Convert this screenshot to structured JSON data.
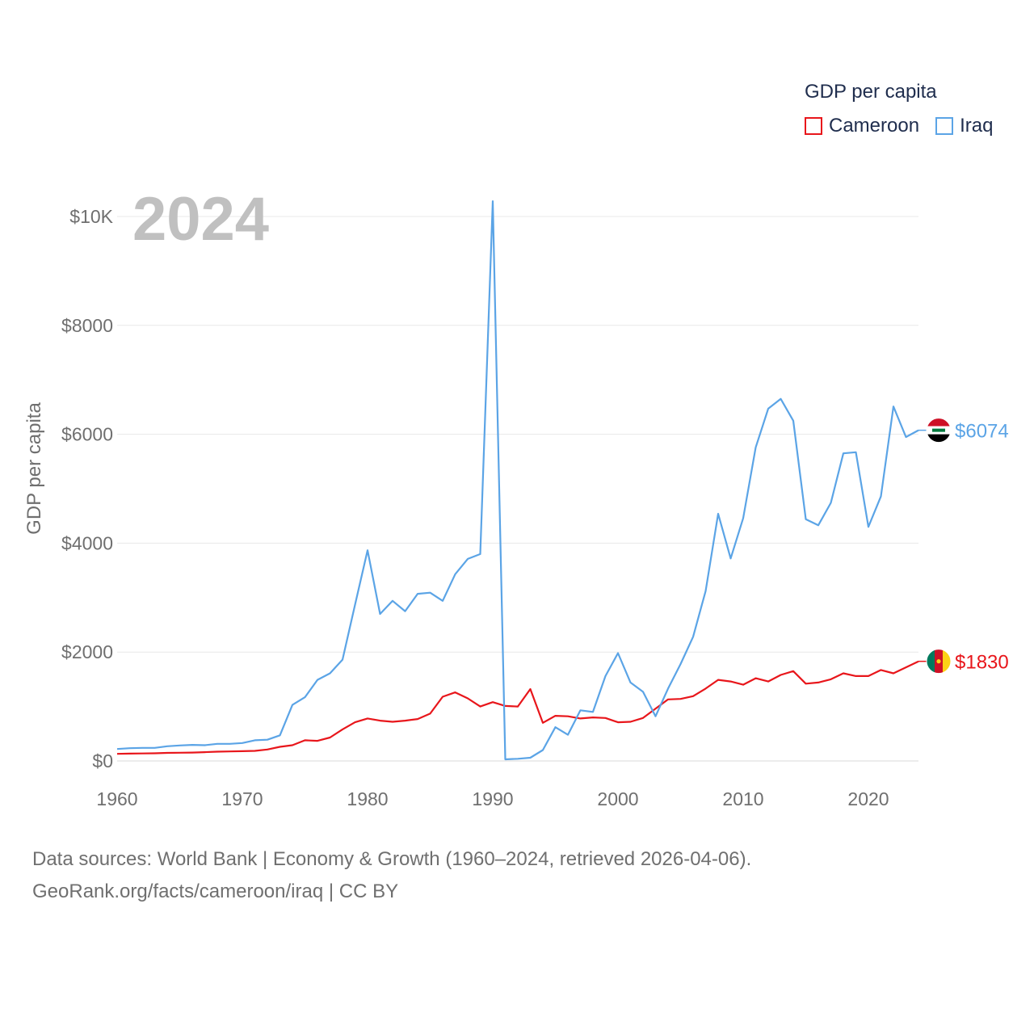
{
  "legend": {
    "title": "GDP per capita",
    "items": [
      {
        "label": "Cameroon",
        "color": "#e8161b"
      },
      {
        "label": "Iraq",
        "color": "#5ba4e6"
      }
    ]
  },
  "year_label": "2024",
  "footer": {
    "line1": "Data sources: World Bank | Economy & Growth (1960–2024, retrieved 2026-04-06).",
    "line2": "GeoRank.org/facts/cameroon/iraq | CC BY"
  },
  "chart_data": {
    "type": "line",
    "title": "GDP per capita",
    "xlabel": "",
    "ylabel": "GDP per capita",
    "xlim": [
      1960,
      2024
    ],
    "ylim": [
      0,
      10000
    ],
    "x_ticks": [
      1960,
      1970,
      1980,
      1990,
      2000,
      2010,
      2020
    ],
    "y_ticks": [
      {
        "value": 0,
        "label": "$0"
      },
      {
        "value": 2000,
        "label": "$2000"
      },
      {
        "value": 4000,
        "label": "$4000"
      },
      {
        "value": 6000,
        "label": "$6000"
      },
      {
        "value": 8000,
        "label": "$8000"
      },
      {
        "value": 10000,
        "label": "$10K"
      }
    ],
    "grid": true,
    "x": [
      1960,
      1961,
      1962,
      1963,
      1964,
      1965,
      1966,
      1967,
      1968,
      1969,
      1970,
      1971,
      1972,
      1973,
      1974,
      1975,
      1976,
      1977,
      1978,
      1979,
      1980,
      1981,
      1982,
      1983,
      1984,
      1985,
      1986,
      1987,
      1988,
      1989,
      1990,
      1991,
      1992,
      1993,
      1994,
      1995,
      1996,
      1997,
      1998,
      1999,
      2000,
      2001,
      2002,
      2003,
      2004,
      2005,
      2006,
      2007,
      2008,
      2009,
      2010,
      2011,
      2012,
      2013,
      2014,
      2015,
      2016,
      2017,
      2018,
      2019,
      2020,
      2021,
      2022,
      2023,
      2024
    ],
    "series": [
      {
        "name": "Cameroon",
        "color": "#e8161b",
        "end_label": "$1830",
        "values": [
          130,
          135,
          138,
          141,
          148,
          152,
          155,
          162,
          170,
          175,
          180,
          185,
          210,
          260,
          290,
          380,
          370,
          430,
          580,
          710,
          780,
          740,
          720,
          740,
          770,
          870,
          1180,
          1260,
          1150,
          1000,
          1080,
          1010,
          1000,
          1320,
          700,
          830,
          820,
          780,
          800,
          790,
          710,
          720,
          790,
          960,
          1130,
          1140,
          1190,
          1330,
          1490,
          1460,
          1400,
          1520,
          1460,
          1580,
          1650,
          1420,
          1440,
          1500,
          1610,
          1560,
          1560,
          1670,
          1610,
          1720,
          1830
        ]
      },
      {
        "name": "Iraq",
        "color": "#5ba4e6",
        "end_label": "$6074",
        "values": [
          220,
          235,
          240,
          240,
          270,
          285,
          295,
          290,
          315,
          315,
          330,
          380,
          390,
          470,
          1030,
          1170,
          1490,
          1610,
          1860,
          2870,
          3870,
          2700,
          2940,
          2750,
          3070,
          3090,
          2940,
          3430,
          3710,
          3800,
          10280,
          30,
          40,
          60,
          200,
          620,
          480,
          930,
          900,
          1560,
          1980,
          1440,
          1270,
          820,
          1330,
          1780,
          2280,
          3120,
          4540,
          3720,
          4460,
          5760,
          6470,
          6650,
          6250,
          4440,
          4330,
          4740,
          5650,
          5670,
          4300,
          4860,
          6510,
          5950,
          6074
        ]
      }
    ]
  }
}
